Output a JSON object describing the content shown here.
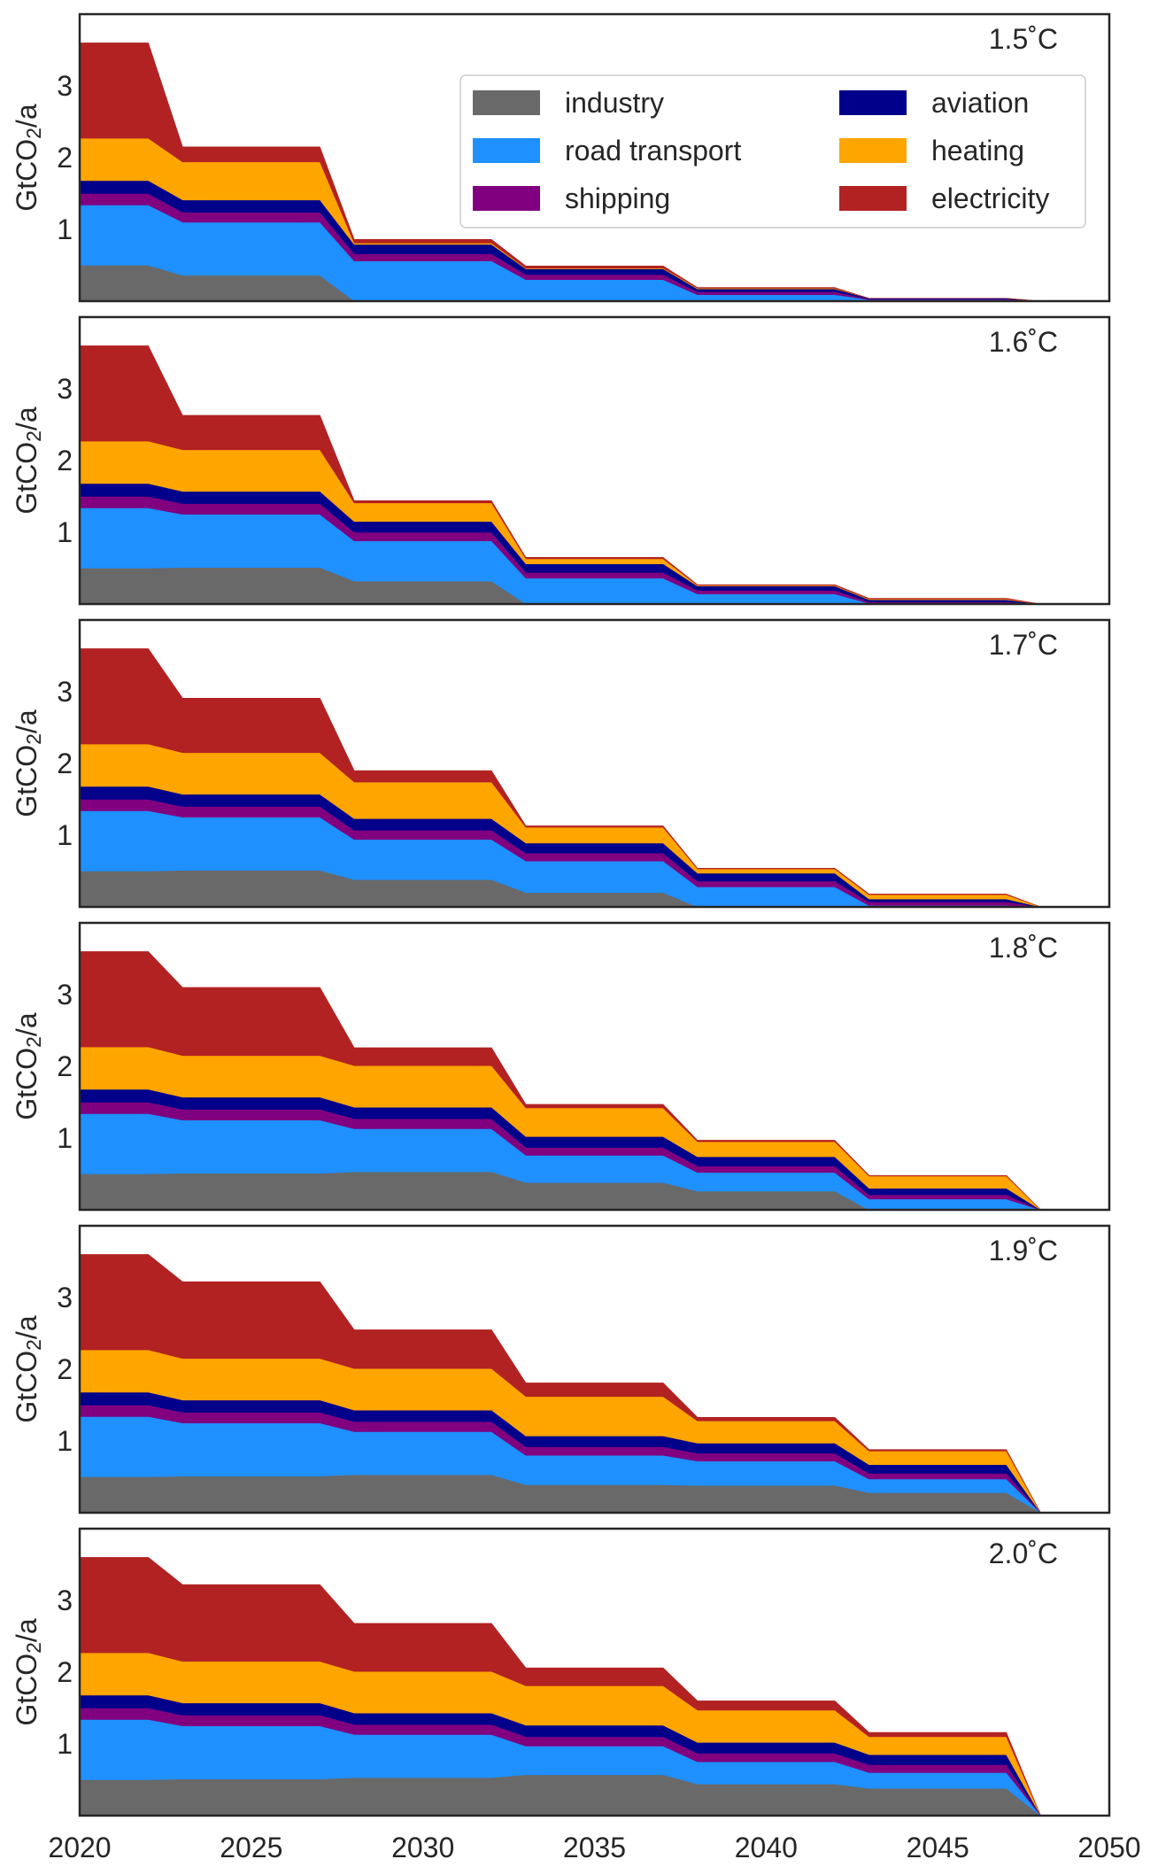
{
  "chart_data": {
    "type": "area",
    "stacked": true,
    "xlim": [
      2020,
      2050
    ],
    "ylim": [
      0,
      4.0
    ],
    "x_ticks": [
      2020,
      2025,
      2030,
      2035,
      2040,
      2045,
      2050
    ],
    "y_ticks": [
      1,
      2,
      3
    ],
    "ylabel_main": "GtCO",
    "ylabel_sub": "2",
    "ylabel_suffix": "/a",
    "grid": false,
    "legend_placement": "top-right of first panel",
    "series": [
      {
        "key": "industry",
        "name": "industry",
        "color": "#696969"
      },
      {
        "key": "road",
        "name": "road transport",
        "color": "#1e90ff"
      },
      {
        "key": "shipping",
        "name": "shipping",
        "color": "#800080"
      },
      {
        "key": "aviation",
        "name": "aviation",
        "color": "#00008b"
      },
      {
        "key": "heating",
        "name": "heating",
        "color": "#ffa500"
      },
      {
        "key": "electricity",
        "name": "electricity",
        "color": "#b22222"
      }
    ],
    "x": [
      2020,
      2022,
      2023,
      2027,
      2028,
      2032,
      2033,
      2037,
      2038,
      2042,
      2043,
      2047,
      2048
    ],
    "panels": [
      {
        "label": "1.5˚C",
        "values": {
          "industry": [
            0.5,
            0.5,
            0.36,
            0.36,
            0.0,
            0.0,
            0.0,
            0.0,
            0.0,
            0.0,
            0.0,
            0.0,
            0.0
          ],
          "road": [
            0.84,
            0.84,
            0.74,
            0.74,
            0.56,
            0.56,
            0.3,
            0.3,
            0.09,
            0.09,
            0.02,
            0.02,
            0.0
          ],
          "shipping": [
            0.16,
            0.16,
            0.14,
            0.14,
            0.1,
            0.1,
            0.07,
            0.07,
            0.04,
            0.04,
            0.01,
            0.01,
            0.0
          ],
          "aviation": [
            0.18,
            0.18,
            0.17,
            0.17,
            0.13,
            0.13,
            0.08,
            0.08,
            0.04,
            0.04,
            0.01,
            0.01,
            0.0
          ],
          "heating": [
            0.59,
            0.59,
            0.53,
            0.53,
            0.02,
            0.02,
            0.01,
            0.01,
            0.01,
            0.01,
            0.0,
            0.0,
            0.0
          ],
          "electricity": [
            1.33,
            1.33,
            0.21,
            0.21,
            0.05,
            0.05,
            0.03,
            0.03,
            0.01,
            0.01,
            0.0,
            0.0,
            0.0
          ]
        }
      },
      {
        "label": "1.6˚C",
        "values": {
          "industry": [
            0.5,
            0.5,
            0.51,
            0.51,
            0.32,
            0.32,
            0.0,
            0.0,
            0.0,
            0.0,
            0.0,
            0.0,
            0.0
          ],
          "road": [
            0.84,
            0.84,
            0.74,
            0.74,
            0.56,
            0.56,
            0.36,
            0.36,
            0.14,
            0.14,
            0.01,
            0.01,
            0.0
          ],
          "shipping": [
            0.16,
            0.16,
            0.15,
            0.15,
            0.12,
            0.12,
            0.08,
            0.08,
            0.05,
            0.05,
            0.02,
            0.02,
            0.0
          ],
          "aviation": [
            0.18,
            0.18,
            0.17,
            0.17,
            0.15,
            0.15,
            0.12,
            0.12,
            0.06,
            0.06,
            0.03,
            0.03,
            0.0
          ],
          "heating": [
            0.59,
            0.59,
            0.58,
            0.58,
            0.26,
            0.26,
            0.07,
            0.07,
            0.01,
            0.01,
            0.01,
            0.01,
            0.0
          ],
          "electricity": [
            1.33,
            1.33,
            0.48,
            0.48,
            0.03,
            0.03,
            0.02,
            0.02,
            0.01,
            0.01,
            0.01,
            0.01,
            0.0
          ]
        }
      },
      {
        "label": "1.7˚C",
        "values": {
          "industry": [
            0.5,
            0.5,
            0.51,
            0.51,
            0.38,
            0.38,
            0.2,
            0.2,
            0.0,
            0.0,
            0.0,
            0.0,
            0.0
          ],
          "road": [
            0.84,
            0.84,
            0.74,
            0.74,
            0.56,
            0.56,
            0.44,
            0.44,
            0.28,
            0.28,
            0.02,
            0.02,
            0.0
          ],
          "shipping": [
            0.16,
            0.16,
            0.15,
            0.15,
            0.13,
            0.13,
            0.11,
            0.11,
            0.08,
            0.08,
            0.05,
            0.05,
            0.0
          ],
          "aviation": [
            0.18,
            0.18,
            0.17,
            0.17,
            0.16,
            0.16,
            0.14,
            0.14,
            0.11,
            0.11,
            0.04,
            0.04,
            0.0
          ],
          "heating": [
            0.59,
            0.59,
            0.58,
            0.58,
            0.51,
            0.51,
            0.22,
            0.22,
            0.06,
            0.06,
            0.06,
            0.06,
            0.0
          ],
          "electricity": [
            1.33,
            1.33,
            0.76,
            0.76,
            0.16,
            0.16,
            0.02,
            0.02,
            0.01,
            0.01,
            0.01,
            0.01,
            0.0
          ]
        }
      },
      {
        "label": "1.8˚C",
        "values": {
          "industry": [
            0.5,
            0.5,
            0.51,
            0.51,
            0.53,
            0.53,
            0.38,
            0.38,
            0.26,
            0.26,
            0.0,
            0.0,
            0.0
          ],
          "road": [
            0.84,
            0.84,
            0.74,
            0.74,
            0.6,
            0.6,
            0.38,
            0.38,
            0.26,
            0.26,
            0.15,
            0.15,
            0.0
          ],
          "shipping": [
            0.16,
            0.16,
            0.15,
            0.15,
            0.14,
            0.14,
            0.11,
            0.11,
            0.09,
            0.09,
            0.06,
            0.06,
            0.0
          ],
          "aviation": [
            0.18,
            0.18,
            0.17,
            0.17,
            0.16,
            0.16,
            0.15,
            0.15,
            0.13,
            0.13,
            0.09,
            0.09,
            0.0
          ],
          "heating": [
            0.59,
            0.59,
            0.58,
            0.58,
            0.58,
            0.58,
            0.4,
            0.4,
            0.21,
            0.21,
            0.17,
            0.17,
            0.0
          ],
          "electricity": [
            1.33,
            1.33,
            0.95,
            0.95,
            0.25,
            0.25,
            0.05,
            0.05,
            0.02,
            0.02,
            0.01,
            0.01,
            0.0
          ]
        }
      },
      {
        "label": "1.9˚C",
        "values": {
          "industry": [
            0.5,
            0.5,
            0.51,
            0.51,
            0.53,
            0.53,
            0.39,
            0.39,
            0.38,
            0.38,
            0.28,
            0.28,
            0.0
          ],
          "road": [
            0.84,
            0.84,
            0.74,
            0.74,
            0.6,
            0.6,
            0.41,
            0.41,
            0.34,
            0.34,
            0.19,
            0.19,
            0.0
          ],
          "shipping": [
            0.16,
            0.16,
            0.15,
            0.15,
            0.14,
            0.14,
            0.12,
            0.12,
            0.11,
            0.11,
            0.08,
            0.08,
            0.0
          ],
          "aviation": [
            0.18,
            0.18,
            0.17,
            0.17,
            0.16,
            0.16,
            0.15,
            0.15,
            0.14,
            0.14,
            0.12,
            0.12,
            0.0
          ],
          "heating": [
            0.59,
            0.59,
            0.58,
            0.58,
            0.58,
            0.58,
            0.55,
            0.55,
            0.31,
            0.31,
            0.19,
            0.19,
            0.0
          ],
          "electricity": [
            1.33,
            1.33,
            1.07,
            1.07,
            0.54,
            0.54,
            0.19,
            0.19,
            0.05,
            0.05,
            0.02,
            0.02,
            0.0
          ]
        }
      },
      {
        "label": "2.0˚C",
        "values": {
          "industry": [
            0.5,
            0.5,
            0.51,
            0.51,
            0.53,
            0.53,
            0.57,
            0.57,
            0.44,
            0.44,
            0.38,
            0.38,
            0.0
          ],
          "road": [
            0.84,
            0.84,
            0.74,
            0.74,
            0.6,
            0.6,
            0.4,
            0.4,
            0.31,
            0.31,
            0.22,
            0.22,
            0.0
          ],
          "shipping": [
            0.16,
            0.16,
            0.15,
            0.15,
            0.14,
            0.14,
            0.13,
            0.13,
            0.12,
            0.12,
            0.11,
            0.11,
            0.0
          ],
          "aviation": [
            0.18,
            0.18,
            0.17,
            0.17,
            0.16,
            0.16,
            0.16,
            0.16,
            0.15,
            0.15,
            0.14,
            0.14,
            0.0
          ],
          "heating": [
            0.59,
            0.59,
            0.58,
            0.58,
            0.58,
            0.58,
            0.55,
            0.55,
            0.45,
            0.45,
            0.25,
            0.25,
            0.0
          ],
          "electricity": [
            1.33,
            1.33,
            1.07,
            1.07,
            0.67,
            0.67,
            0.25,
            0.25,
            0.13,
            0.13,
            0.06,
            0.06,
            0.0
          ]
        }
      }
    ]
  }
}
